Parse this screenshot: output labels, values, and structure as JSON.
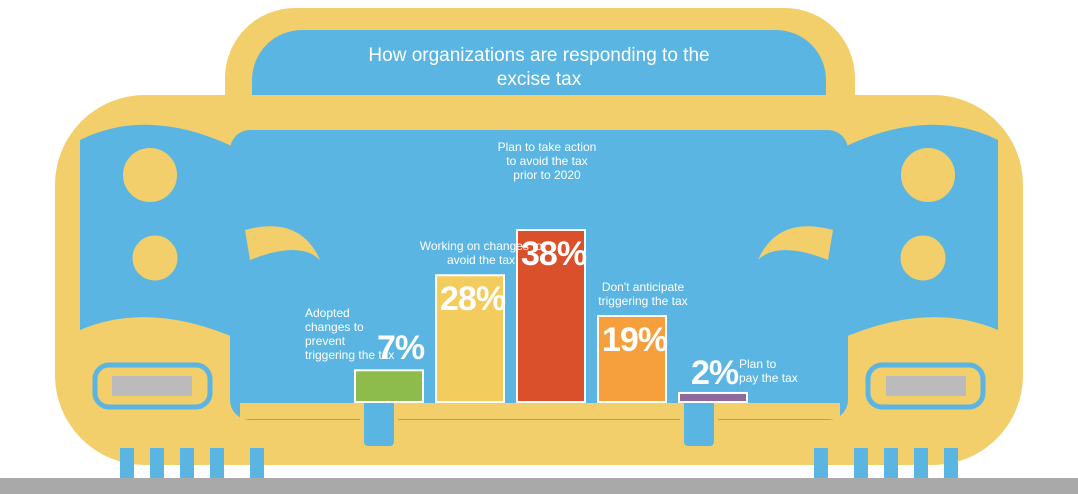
{
  "chart_data": {
    "type": "bar",
    "title": "How organizations are responding to the excise tax",
    "categories": [
      "Adopted changes to prevent triggering the tax",
      "Working on changes to avoid the tax",
      "Plan to take action to avoid the tax prior to 2020",
      "Don't anticipate triggering the tax",
      "Plan to pay the tax"
    ],
    "values": [
      7,
      28,
      38,
      19,
      2
    ],
    "value_labels": [
      "7%",
      "28%",
      "38%",
      "19%",
      "2%"
    ],
    "colors": [
      "#8dbb4c",
      "#f2cc5c",
      "#d9502a",
      "#f5a03c",
      "#8e6a9c"
    ]
  }
}
